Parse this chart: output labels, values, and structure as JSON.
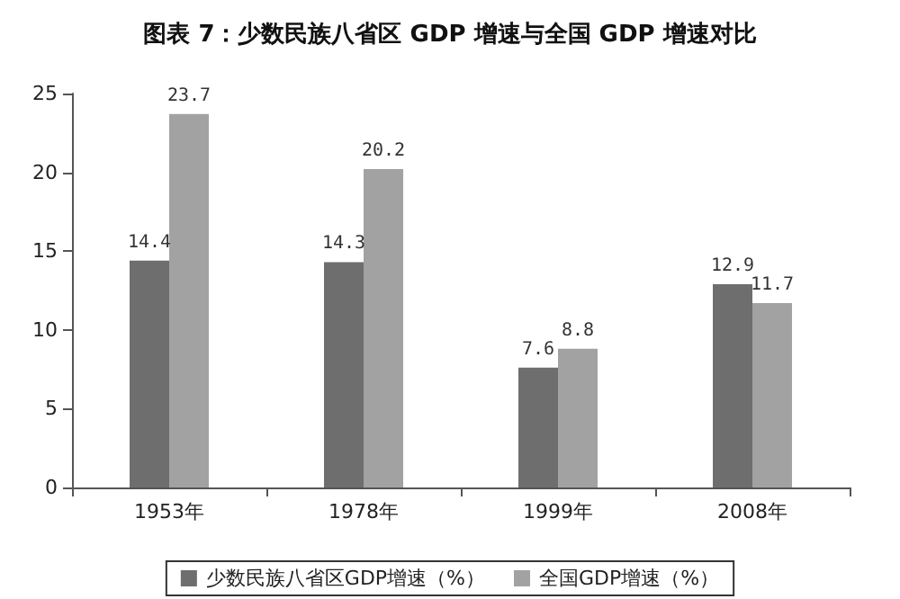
{
  "chart_data": {
    "type": "bar",
    "title": "图表 7：少数民族八省区 GDP 增速与全国 GDP 增速对比",
    "categories": [
      "1953年",
      "1978年",
      "1999年",
      "2008年"
    ],
    "series": [
      {
        "name": "少数民族八省区GDP增速（%）",
        "color": "#6e6e6e",
        "values": [
          14.4,
          14.3,
          7.6,
          12.9
        ]
      },
      {
        "name": "全国GDP增速（%）",
        "color": "#a2a2a2",
        "values": [
          23.7,
          20.2,
          8.8,
          11.7
        ]
      }
    ],
    "ylim": [
      0,
      25
    ],
    "yticks": [
      0,
      5,
      10,
      15,
      20,
      25
    ],
    "grid": false,
    "legend": "bottom",
    "data_labels": true
  }
}
